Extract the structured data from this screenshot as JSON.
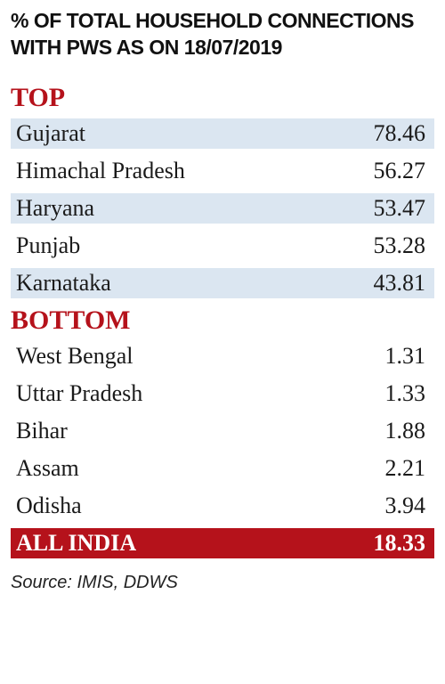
{
  "title": "% OF TOTAL HOUSEHOLD CONNECTIONS WITH PWS AS ON 18/07/2019",
  "colors": {
    "accent": "#b5121b",
    "row_shade": "#dbe6f1",
    "text": "#1a1a1a"
  },
  "chart_data": {
    "type": "table",
    "title": "% OF TOTAL HOUSEHOLD CONNECTIONS WITH PWS AS ON 18/07/2019",
    "sections": [
      {
        "name": "TOP",
        "rows": [
          {
            "state": "Gujarat",
            "value": "78.46"
          },
          {
            "state": "Himachal Pradesh",
            "value": "56.27"
          },
          {
            "state": "Haryana",
            "value": "53.47"
          },
          {
            "state": "Punjab",
            "value": "53.28"
          },
          {
            "state": "Karnataka",
            "value": "43.81"
          }
        ]
      },
      {
        "name": "BOTTOM",
        "rows": [
          {
            "state": "West Bengal",
            "value": "1.31"
          },
          {
            "state": "Uttar Pradesh",
            "value": "1.33"
          },
          {
            "state": "Bihar",
            "value": "1.88"
          },
          {
            "state": "Assam",
            "value": "2.21"
          },
          {
            "state": "Odisha",
            "value": "3.94"
          }
        ]
      }
    ],
    "total": {
      "state": "ALL INDIA",
      "value": "18.33"
    }
  },
  "source": "Source: IMIS, DDWS"
}
